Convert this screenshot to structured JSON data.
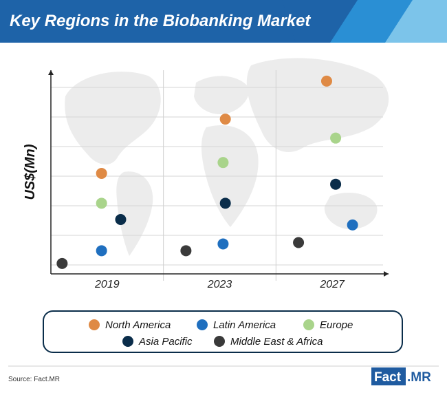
{
  "header": {
    "title": "Key Regions in the Biobanking Market",
    "band_color": "#1e63a8",
    "accent_colors": [
      "#2a8fd4",
      "#7cc4ea"
    ]
  },
  "chart_data": {
    "type": "scatter",
    "title": "Key Regions in the Biobanking Market",
    "ylabel": "US$(Mn)",
    "xlabel": "",
    "categories": [
      "2019",
      "2023",
      "2027"
    ],
    "y_axis_ticks_labeled": false,
    "ylim": [
      0,
      7
    ],
    "grid": true,
    "legend_position": "bottom",
    "series": [
      {
        "name": "North America",
        "color": "#df8a45",
        "points": [
          {
            "x": "2019",
            "offset": -0.05,
            "y": 3.4
          },
          {
            "x": "2023",
            "offset": 0.05,
            "y": 5.4
          },
          {
            "x": "2027",
            "offset": -0.05,
            "y": 6.8
          }
        ]
      },
      {
        "name": "Latin America",
        "color": "#1f6fbf",
        "points": [
          {
            "x": "2019",
            "offset": -0.05,
            "y": 0.55
          },
          {
            "x": "2023",
            "offset": 0.03,
            "y": 0.8
          },
          {
            "x": "2027",
            "offset": 0.18,
            "y": 1.5
          }
        ]
      },
      {
        "name": "Europe",
        "color": "#a9d48b",
        "points": [
          {
            "x": "2019",
            "offset": -0.05,
            "y": 2.3
          },
          {
            "x": "2023",
            "offset": 0.03,
            "y": 3.8
          },
          {
            "x": "2027",
            "offset": 0.03,
            "y": 4.7
          }
        ]
      },
      {
        "name": "Asia Pacific",
        "color": "#0a2d4a",
        "points": [
          {
            "x": "2019",
            "offset": 0.12,
            "y": 1.7
          },
          {
            "x": "2023",
            "offset": 0.05,
            "y": 2.3
          },
          {
            "x": "2027",
            "offset": 0.03,
            "y": 3.0
          }
        ]
      },
      {
        "name": "Middle East & Africa",
        "color": "#3a3a3a",
        "points": [
          {
            "x": "2019",
            "offset": -0.4,
            "y": 0.08
          },
          {
            "x": "2023",
            "offset": -0.3,
            "y": 0.55
          },
          {
            "x": "2027",
            "offset": -0.3,
            "y": 0.85
          }
        ]
      }
    ]
  },
  "legend": {
    "row1": [
      "North America",
      "Latin America",
      "Europe"
    ],
    "row2": [
      "Asia Pacific",
      "Middle East & Africa"
    ]
  },
  "footer": {
    "source": "Source: Fact.MR",
    "logo_part1": "Fact",
    "logo_part2": ".MR"
  }
}
